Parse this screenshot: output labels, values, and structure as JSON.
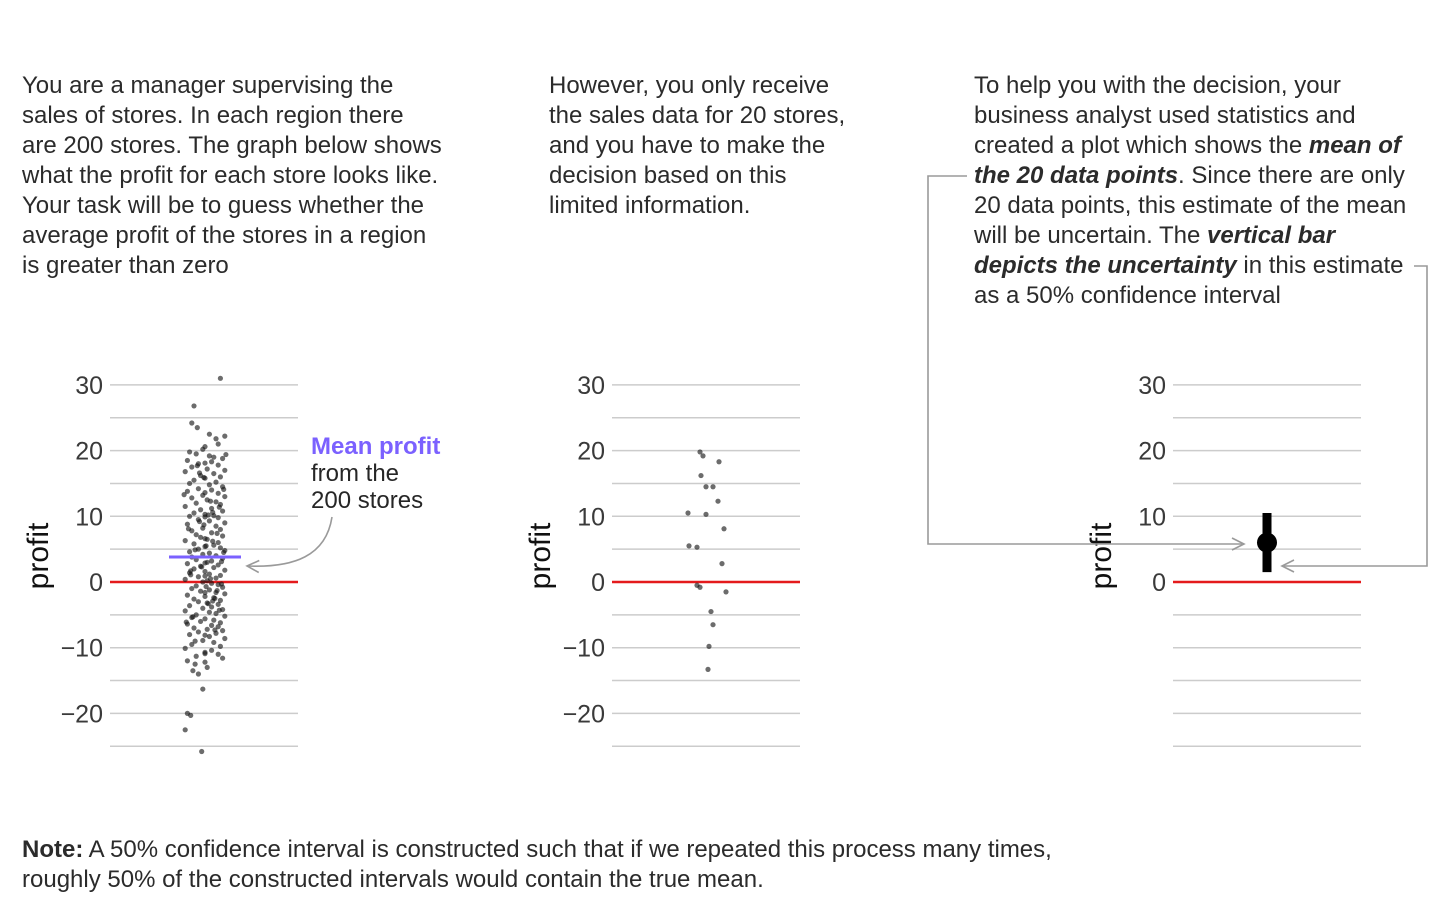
{
  "paragraphs": {
    "p1": "You are a manager supervising the sales of stores. In each region there are 200 stores. The graph below shows what the profit for each store looks like. Your task will be to guess whether the average profit of the stores in a region is greater than zero",
    "p2": "However, you only receive the sales data for 20 stores, and you have to make the decision based on this limited information.",
    "p3": {
      "a": "To help you with the decision, your business analyst used statistics and created a plot which shows the ",
      "b": "mean of the 20 data points",
      "c": ". Since there are only 20 data points, this estimate of the mean will be uncertain. The ",
      "d": "vertical bar depicts the uncertainty",
      "e": " in this estimate as a 50% confidence interval"
    }
  },
  "note": {
    "label": "Note:",
    "text": " A 50% confidence interval is constructed such that if we repeated this process many times, roughly 50% of the constructed intervals would contain the true mean."
  },
  "annotation": {
    "strong": "Mean profit",
    "line1": "from the",
    "line2": "200 stores"
  },
  "colors": {
    "zero_line": "#e41a1c",
    "mean_line": "#7b61ff",
    "points": "#111111",
    "grid": "#cccccc",
    "arrow": "#9a9a9a"
  },
  "chart_data": [
    {
      "type": "scatter",
      "ylabel": "profit",
      "ylim": [
        -25,
        30
      ],
      "yticks": [
        -20,
        -10,
        0,
        10,
        20,
        30
      ],
      "grid": true,
      "reference_line": 0,
      "mean": 3.8,
      "values": [
        31,
        26.8,
        24.2,
        23.5,
        22.5,
        22.2,
        21.8,
        21.0,
        20.2,
        19.8,
        19.5,
        19.2,
        19.0,
        18.8,
        18.5,
        18.3,
        18.0,
        17.8,
        17.5,
        17.2,
        17.0,
        16.8,
        16.5,
        16.2,
        16.0,
        15.8,
        15.5,
        15.2,
        15.0,
        14.8,
        14.5,
        14.2,
        14.0,
        13.8,
        13.5,
        13.2,
        13.0,
        12.8,
        12.5,
        12.2,
        12.0,
        11.8,
        11.5,
        11.2,
        11.0,
        10.8,
        10.5,
        10.3,
        10.1,
        10.0,
        9.8,
        9.5,
        9.3,
        9.0,
        8.8,
        8.5,
        8.2,
        8.0,
        7.8,
        7.5,
        7.2,
        7.0,
        6.8,
        6.5,
        6.3,
        6.0,
        5.8,
        5.6,
        5.4,
        5.2,
        5.0,
        4.8,
        4.6,
        4.4,
        4.2,
        4.0,
        3.8,
        3.6,
        3.4,
        3.2,
        3.0,
        2.8,
        2.6,
        2.4,
        2.2,
        2.0,
        1.8,
        1.6,
        1.4,
        1.2,
        1.0,
        0.8,
        0.6,
        0.4,
        0.2,
        0.0,
        -0.2,
        -0.4,
        -0.6,
        -0.8,
        -1.0,
        -1.2,
        -1.4,
        -1.6,
        -1.8,
        -2.0,
        -2.2,
        -2.4,
        -2.6,
        -2.8,
        -3.0,
        -3.2,
        -3.4,
        -3.6,
        -3.8,
        -4.0,
        -4.2,
        -4.4,
        -4.6,
        -4.8,
        -5.0,
        -5.2,
        -5.4,
        -5.6,
        -5.8,
        -6.0,
        -6.2,
        -6.4,
        -6.6,
        -6.8,
        -7.0,
        -7.2,
        -7.4,
        -7.6,
        -7.8,
        -8.0,
        -8.3,
        -8.6,
        -8.9,
        -9.2,
        -9.5,
        -9.8,
        -10.1,
        -10.4,
        -10.7,
        -11.0,
        -11.3,
        -11.6,
        -12.0,
        -12.5,
        -13.0,
        -13.5,
        -14.0,
        -16.3,
        -20.0,
        -20.3,
        -22.5,
        -25.8,
        10.2,
        10.6,
        9.2,
        7.4,
        4.9,
        3.1,
        1.1,
        -0.7,
        -2.5,
        -4.3,
        -6.1,
        12.3,
        14.1,
        15.9,
        17.7,
        19.4,
        8.1,
        6.2,
        2.3,
        -1.3,
        -3.3,
        -5.3,
        -7.3,
        13.3,
        11.4,
        16.6,
        5.5,
        -0.3,
        -9.0,
        0.5,
        1.7,
        4.5,
        8.7,
        -2.9,
        -8.1,
        18.1,
        20.6,
        9.9,
        6.6,
        -1.6,
        2.9,
        -10.9,
        -12.2,
        13.6,
        0.9
      ],
      "offsets": [
        0.7,
        -0.5,
        -0.6,
        -0.35,
        0.2,
        0.9,
        0.5,
        0.6,
        -0.1,
        -0.7,
        -0.4,
        0.2,
        0.4,
        0.8,
        -0.8,
        0.3,
        -0.3,
        0.6,
        -0.6,
        0.1,
        0.9,
        -0.9,
        0.4,
        -0.2,
        0.7,
        0.0,
        -0.5,
        0.5,
        -0.7,
        0.2,
        0.8,
        -0.3,
        0.3,
        -0.8,
        0.6,
        -0.1,
        0.9,
        -0.6,
        0.1,
        0.5,
        -0.4,
        0.7,
        -0.9,
        0.3,
        -0.2,
        0.8,
        -0.5,
        0.0,
        0.4,
        -0.7,
        0.6,
        -0.3,
        0.2,
        0.9,
        -0.8,
        0.5,
        -0.1,
        0.7,
        -0.6,
        0.3,
        -0.4,
        0.8,
        -0.2,
        0.1,
        -0.9,
        0.6,
        -0.5,
        0.4,
        0.0,
        0.7,
        -0.3,
        0.9,
        -0.7,
        0.2,
        -0.1,
        0.5,
        -0.6,
        0.8,
        -0.4,
        0.3,
        0.1,
        -0.8,
        0.6,
        -0.2,
        0.4,
        -0.5,
        0.9,
        0.0,
        -0.7,
        0.2,
        0.7,
        -0.3,
        0.5,
        -0.9,
        0.1,
        -0.1,
        0.3,
        0.6,
        -0.4,
        0.8,
        -0.6,
        0.2,
        -0.2,
        0.5,
        0.9,
        -0.8,
        0.0,
        0.4,
        -0.5,
        0.7,
        -0.3,
        0.1,
        0.6,
        -0.7,
        0.3,
        -0.1,
        0.8,
        -0.9,
        0.2,
        0.5,
        -0.4,
        0.9,
        -0.6,
        0.0,
        0.4,
        -0.2,
        0.7,
        -0.8,
        0.3,
        0.6,
        -0.5,
        0.1,
        0.8,
        -0.3,
        0.5,
        -0.7,
        0.2,
        0.9,
        -0.1,
        0.4,
        -0.6,
        0.7,
        -0.9,
        0.3,
        0.0,
        0.6,
        -0.4,
        0.8,
        -0.8,
        -0.45,
        0.1,
        -0.55,
        -0.3,
        -0.1,
        -0.8,
        -0.65,
        -0.9,
        -0.15,
        0.15,
        0.35,
        -0.25,
        0.55,
        -0.45,
        0.75,
        -0.65,
        0.05,
        0.45,
        0.65,
        -0.85,
        0.25,
        0.85,
        -0.05,
        -0.35,
        0.95,
        -0.75,
        0.35,
        -0.15,
        0.55,
        0.15,
        -0.55,
        0.45,
        -0.95,
        0.65,
        -0.25,
        0.05,
        0.75,
        -0.45,
        0.25,
        -0.65,
        0.85,
        -0.05,
        0.35
      ],
      "overlay": "mean_line"
    },
    {
      "type": "scatter",
      "ylabel": "profit",
      "ylim": [
        -25,
        30
      ],
      "yticks": [
        -20,
        -10,
        0,
        10,
        20,
        30
      ],
      "grid": true,
      "reference_line": 0,
      "values": [
        19.8,
        19.2,
        18.3,
        16.2,
        14.5,
        14.5,
        12.3,
        10.5,
        10.3,
        8.1,
        5.5,
        5.3,
        2.8,
        -0.5,
        -0.8,
        -1.5,
        -4.5,
        -6.5,
        -9.8,
        -13.3
      ],
      "offsets": [
        -0.3,
        -0.15,
        0.65,
        -0.25,
        0.0,
        0.35,
        0.6,
        -0.9,
        0.0,
        0.9,
        -0.85,
        -0.45,
        0.8,
        -0.45,
        -0.3,
        1.0,
        0.25,
        0.35,
        0.15,
        0.1
      ]
    },
    {
      "type": "interval",
      "ylabel": "profit",
      "ylim": [
        -25,
        30
      ],
      "yticks": [
        0,
        10,
        20,
        30
      ],
      "grid": true,
      "reference_line": 0,
      "estimate": 6.0,
      "ci_low": 1.5,
      "ci_high": 10.5,
      "ci_level": "50%"
    }
  ]
}
